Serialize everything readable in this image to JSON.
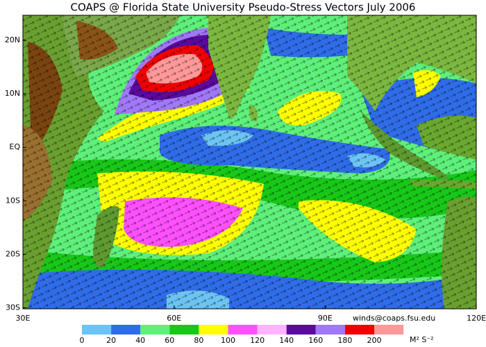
{
  "title": "COAPS @ Florida State University Pseudo-Stress Vectors July 2006",
  "lat_labels": [
    "20N",
    "10N",
    "EQ",
    "10S",
    "20S",
    "30S"
  ],
  "lon_labels": [
    "30E",
    "60E",
    "90E",
    "120E"
  ],
  "credit": "winds@coaps.fsu.edu",
  "colorbar": {
    "ticks": [
      0,
      20,
      40,
      60,
      80,
      100,
      120,
      140,
      160,
      180,
      200
    ],
    "colors": [
      "#6cc4f4",
      "#2f6ce8",
      "#5ef07a",
      "#18c818",
      "#ffff00",
      "#ff50ff",
      "#ffb4ff",
      "#5a0a9c",
      "#a078f8",
      "#f00000",
      "#ff9898"
    ],
    "unit": "M² S⁻²"
  }
}
